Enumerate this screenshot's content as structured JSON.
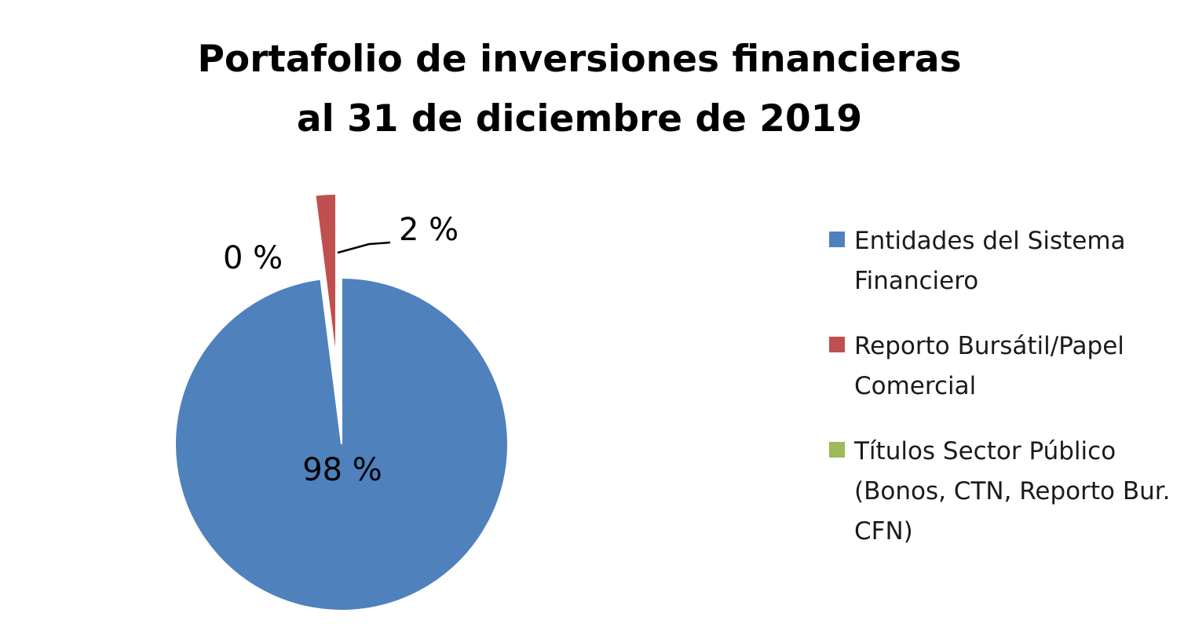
{
  "chart_data": {
    "type": "pie",
    "title_line1": "Portafolio de inversiones financieras",
    "title_line2": "al 31 de diciembre de 2019",
    "legend_position": "right",
    "slices": [
      {
        "name": "Entidades del Sistema Financiero",
        "value": 98,
        "label": "98 %",
        "color": "#4F81BD"
      },
      {
        "name": "Reporto Bursátil/Papel Comercial",
        "value": 2,
        "label": "2 %",
        "color": "#C0504D",
        "exploded": true
      },
      {
        "name": "Títulos Sector Público (Bonos, CTN, Reporto Bur. CFN)",
        "value": 0,
        "label": "0 %",
        "color": "#9BBB59"
      }
    ]
  }
}
